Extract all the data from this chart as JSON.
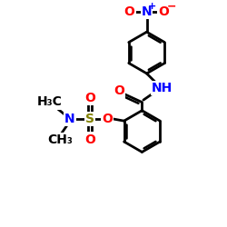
{
  "bg": "#ffffff",
  "bc": "#000000",
  "nc": "#0000ff",
  "oc": "#ff0000",
  "sc": "#808000",
  "lw": 2.0,
  "lw_inner": 1.8,
  "fs": 10,
  "fs_small": 8,
  "figsize": [
    2.5,
    2.5
  ],
  "dpi": 100,
  "xlim": [
    -1.5,
    5.5
  ],
  "ylim": [
    -3.5,
    4.5
  ]
}
